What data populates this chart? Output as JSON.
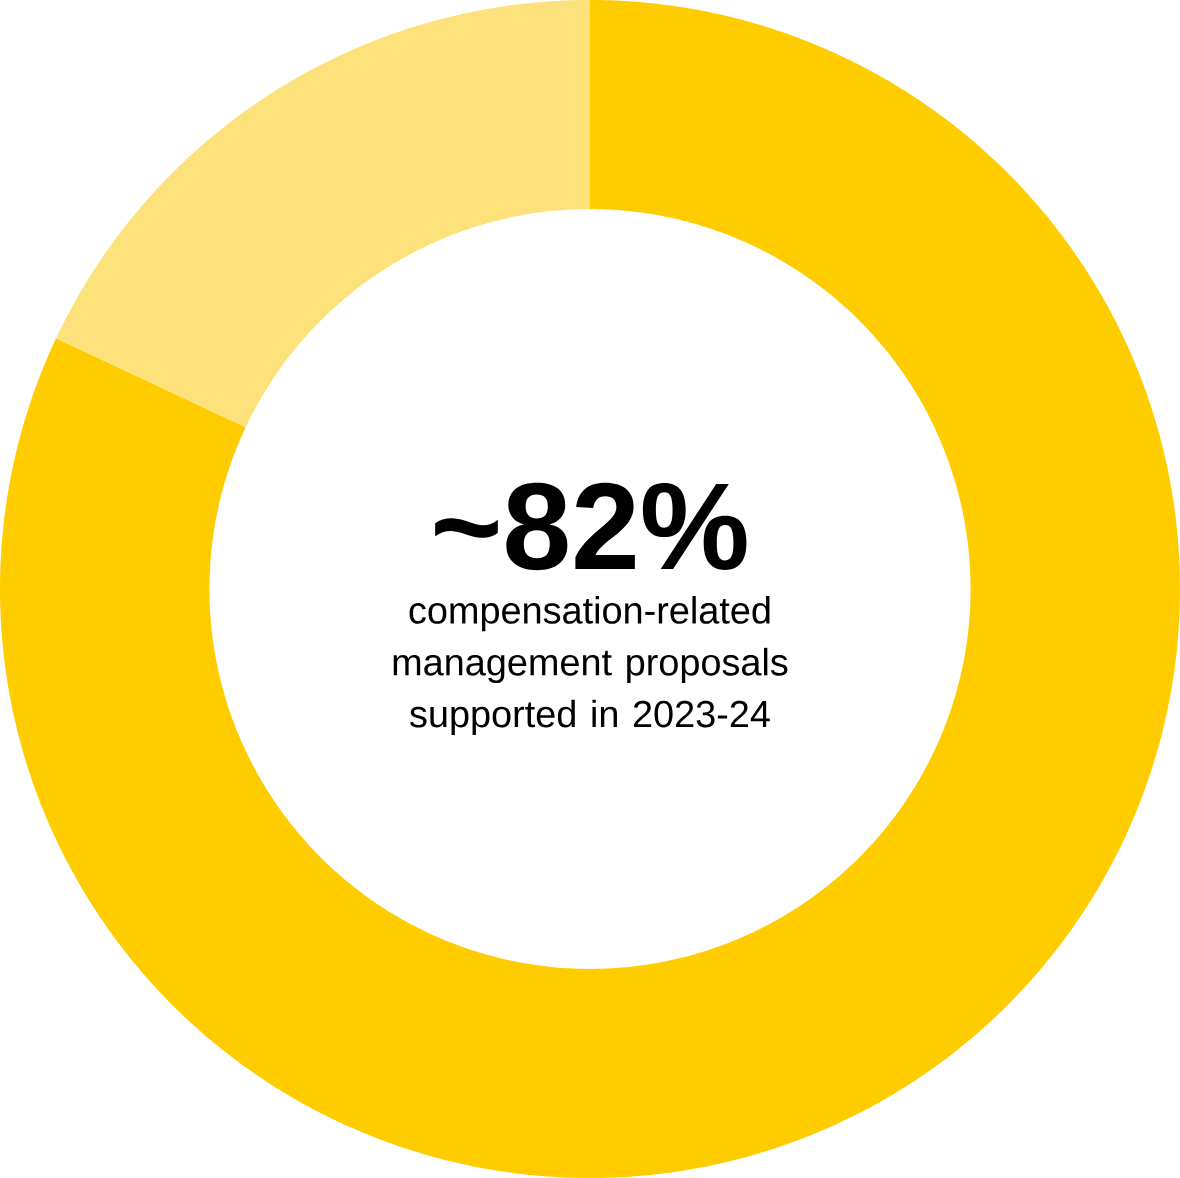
{
  "chart_data": {
    "type": "donut",
    "categories": [
      null,
      null
    ],
    "values": [
      82,
      18
    ],
    "colors": [
      "#ffcc00",
      "#fde17a"
    ],
    "annotations": [
      "~82%",
      "compensation-related management proposals supported in 2023-24"
    ]
  }
}
